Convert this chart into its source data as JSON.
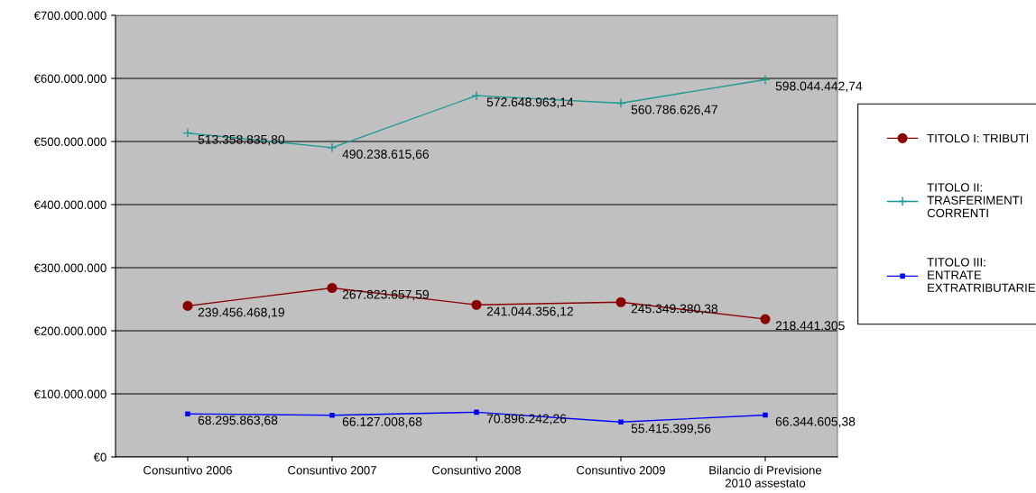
{
  "chart_data": {
    "type": "line",
    "categories": [
      "Consuntivo 2006",
      "Consuntivo 2007",
      "Consuntivo 2008",
      "Consuntivo 2009",
      "Bilancio di Previsione\n2010 assestato"
    ],
    "series": [
      {
        "name": "TITOLO I: TRIBUTI",
        "color": "#8b0000",
        "marker": "circle",
        "values": [
          239456468.19,
          267823657.59,
          241044356.12,
          245349380.38,
          218441305
        ],
        "value_labels": [
          "239.456.468,19",
          "267.823.657,59",
          "241.044.356,12",
          "245.349.380,38",
          "218.441.305"
        ]
      },
      {
        "name": "TITOLO II:\nTRASFERIMENTI\nCORRENTI",
        "color": "#199a94",
        "marker": "cross",
        "values": [
          513358835.8,
          490238615.66,
          572648963.14,
          560786626.47,
          598044442.74
        ],
        "value_labels": [
          "513.358.835,80",
          "490.238.615,66",
          "572.648.963,14",
          "560.786.626,47",
          "598.044.442,74"
        ]
      },
      {
        "name": "TITOLO III:\nENTRATE\nEXTRATRIBUTARIE",
        "color": "#0000ff",
        "marker": "square",
        "values": [
          68295863.68,
          66127008.68,
          70896242.26,
          55415399.56,
          66344605.38
        ],
        "value_labels": [
          "68.295.863,68",
          "66.127.008,68",
          "70.896.242,26",
          "55.415.399,56",
          "66.344.605,38"
        ]
      }
    ],
    "ylim": [
      0,
      700000000
    ],
    "yticks": [
      {
        "value": 0,
        "label": "€0"
      },
      {
        "value": 100000000,
        "label": "€100.000.000"
      },
      {
        "value": 200000000,
        "label": "€200.000.000"
      },
      {
        "value": 300000000,
        "label": "€300.000.000"
      },
      {
        "value": 400000000,
        "label": "€400.000.000"
      },
      {
        "value": 500000000,
        "label": "€500.000.000"
      },
      {
        "value": 600000000,
        "label": "€600.000.000"
      },
      {
        "value": 700000000,
        "label": "€700.000.000"
      }
    ],
    "grid": "y",
    "legend": "right",
    "line_style": "solid"
  }
}
